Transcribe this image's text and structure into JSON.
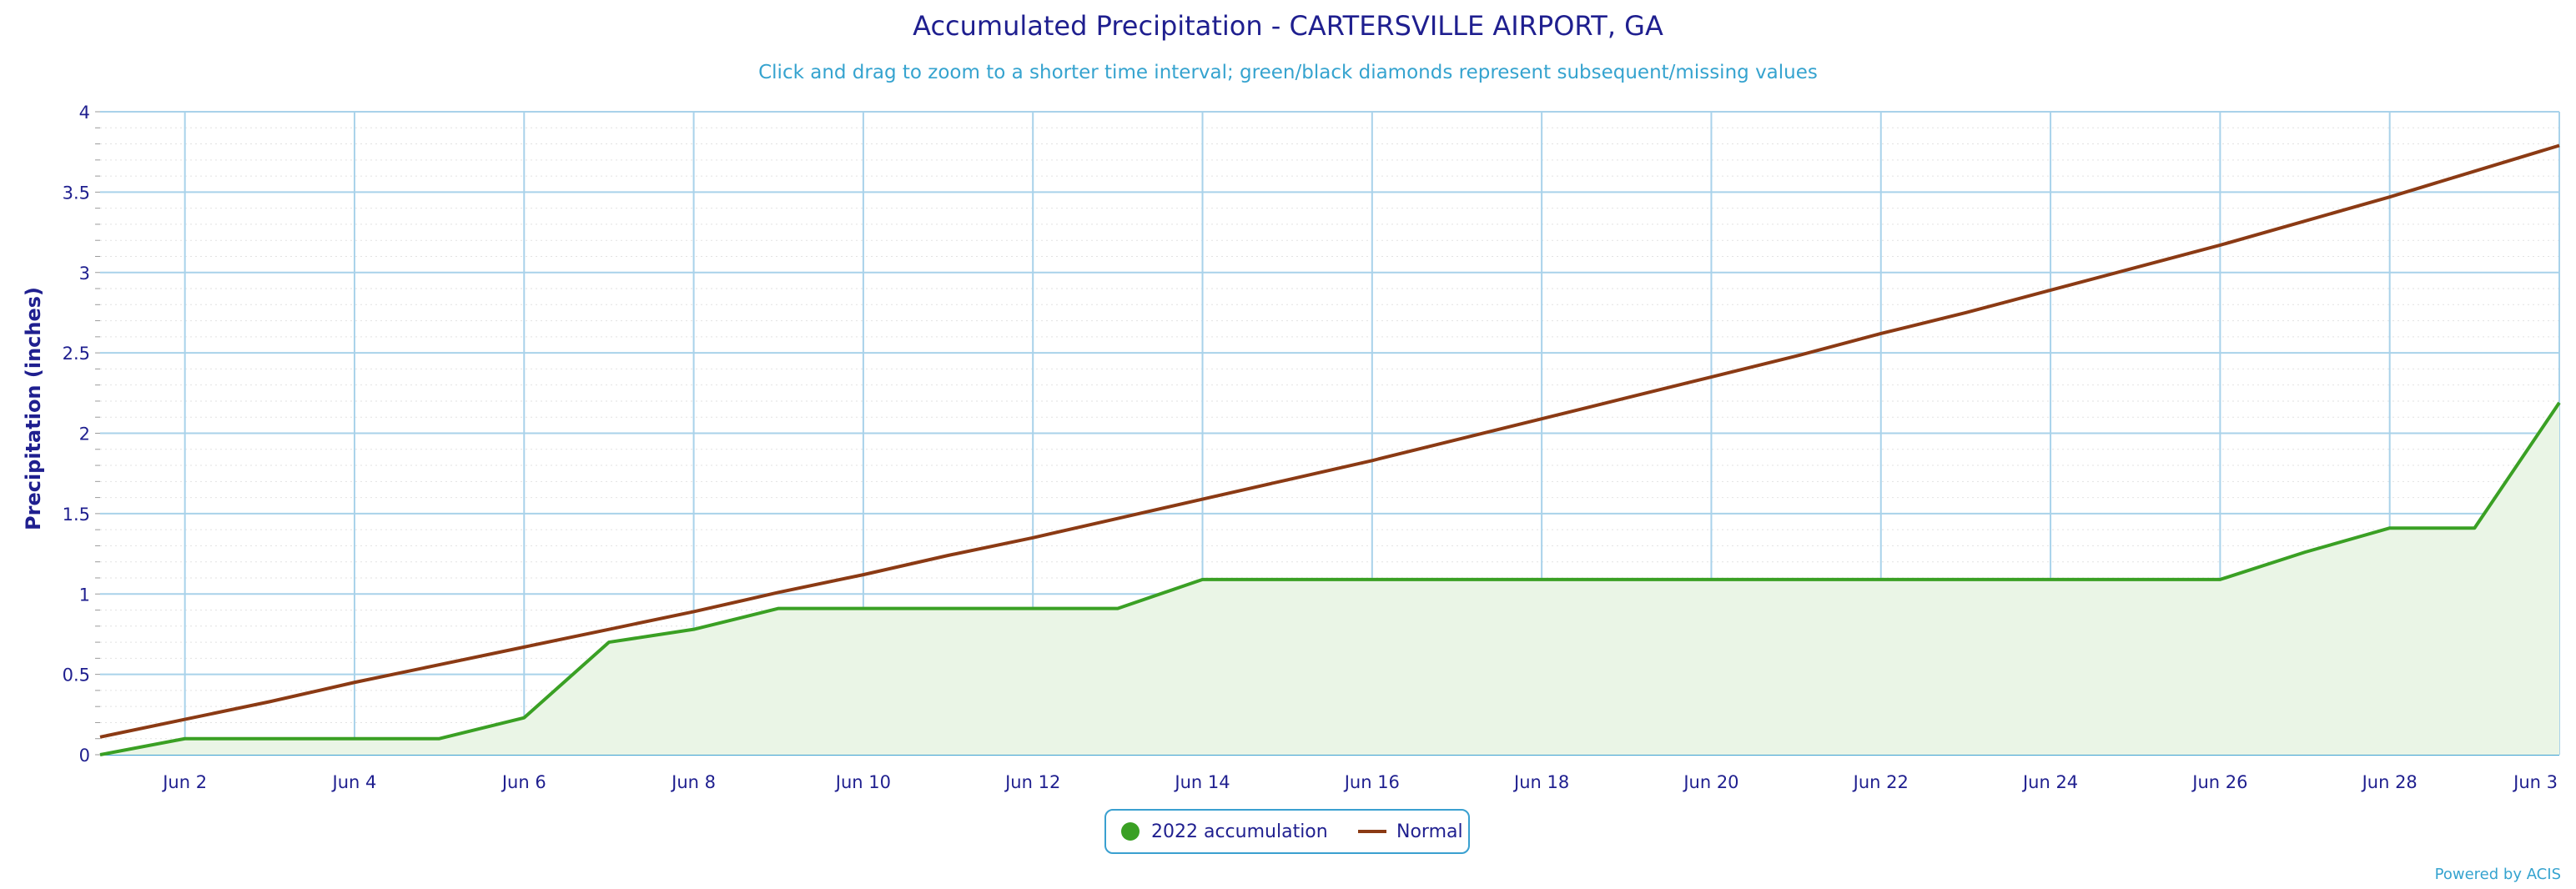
{
  "chart_data": {
    "type": "area",
    "title": "Accumulated Precipitation - CARTERSVILLE AIRPORT, GA",
    "subtitle": "Click and drag to zoom to a shorter time interval; green/black diamonds represent subsequent/missing values",
    "xlabel": "",
    "ylabel": "Precipitation (inches)",
    "ylim": [
      0,
      4
    ],
    "y_ticks": [
      "0",
      "0.5",
      "1",
      "1.5",
      "2",
      "2.5",
      "3",
      "3.5",
      "4"
    ],
    "x_tick_days": [
      2,
      4,
      6,
      8,
      10,
      12,
      14,
      16,
      18,
      20,
      22,
      24,
      26,
      28,
      30
    ],
    "x_tick_labels": [
      "Jun 2",
      "Jun 4",
      "Jun 6",
      "Jun 8",
      "Jun 10",
      "Jun 12",
      "Jun 14",
      "Jun 16",
      "Jun 18",
      "Jun 20",
      "Jun 22",
      "Jun 24",
      "Jun 26",
      "Jun 28",
      "Jun 3"
    ],
    "x": [
      1,
      2,
      3,
      4,
      5,
      6,
      7,
      8,
      9,
      10,
      11,
      12,
      13,
      14,
      15,
      16,
      17,
      18,
      19,
      20,
      21,
      22,
      23,
      24,
      25,
      26,
      27,
      28,
      29,
      30
    ],
    "grid": true,
    "legend_position": "bottom-center",
    "series": [
      {
        "name": "2022 accumulation",
        "color": "#3aa024",
        "fill": "#eaf5e6",
        "values": [
          0.0,
          0.1,
          0.1,
          0.1,
          0.1,
          0.23,
          0.7,
          0.78,
          0.91,
          0.91,
          0.91,
          0.91,
          0.91,
          1.09,
          1.09,
          1.09,
          1.09,
          1.09,
          1.09,
          1.09,
          1.09,
          1.09,
          1.09,
          1.09,
          1.09,
          1.09,
          1.26,
          1.41,
          1.41,
          2.19
        ]
      },
      {
        "name": "Normal",
        "color": "#8b3a14",
        "values": [
          0.11,
          0.22,
          0.33,
          0.45,
          0.56,
          0.67,
          0.78,
          0.89,
          1.01,
          1.12,
          1.24,
          1.35,
          1.47,
          1.59,
          1.71,
          1.83,
          1.96,
          2.09,
          2.22,
          2.35,
          2.48,
          2.62,
          2.75,
          2.89,
          3.03,
          3.17,
          3.32,
          3.47,
          3.63,
          3.79
        ]
      }
    ]
  },
  "footer": {
    "credit": "Powered by ACIS"
  }
}
